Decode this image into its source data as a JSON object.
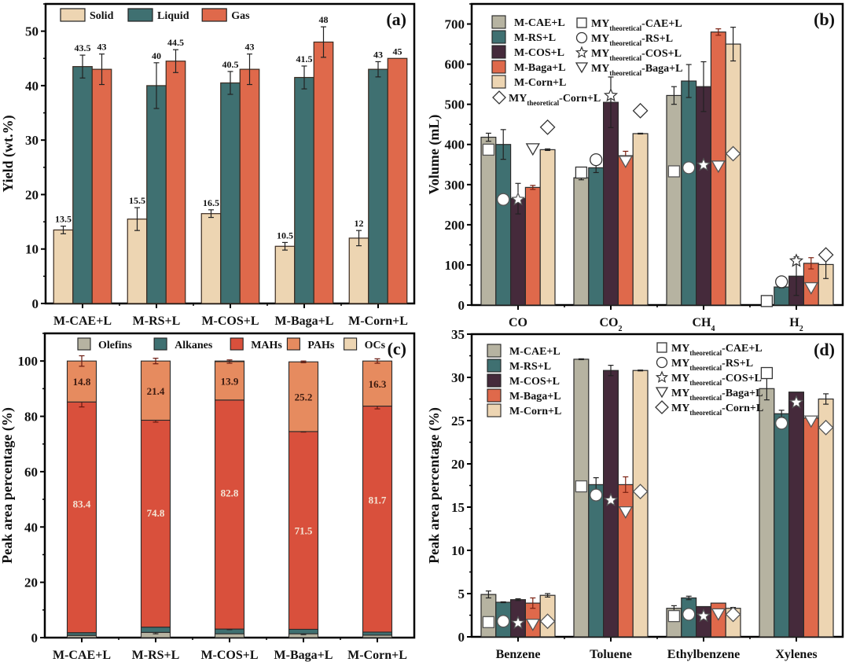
{
  "chart_data": [
    {
      "id": "a",
      "type": "bar",
      "panel_tag": "(a)",
      "title": "",
      "xlabel": "",
      "ylabel": "Yield (wt.%)",
      "ylim": [
        0,
        55
      ],
      "yticks": [
        0,
        10,
        20,
        30,
        40,
        50
      ],
      "categories": [
        "M-CAE+L",
        "M-RS+L",
        "M-COS+L",
        "M-Baga+L",
        "M-Corn+L"
      ],
      "legend_position": "top-left",
      "series": [
        {
          "name": "Solid",
          "color": "#edd5b2",
          "values": [
            13.5,
            15.5,
            16.5,
            10.5,
            12
          ],
          "errors": [
            0.7,
            2.1,
            0.7,
            0.7,
            1.4
          ],
          "labels": [
            "13.5",
            "15.5",
            "16.5",
            "10.5",
            "12"
          ]
        },
        {
          "name": "Liquid",
          "color": "#3f7071",
          "values": [
            43.5,
            40,
            40.5,
            41.5,
            43
          ],
          "errors": [
            2.1,
            4.2,
            2.1,
            2.1,
            1.4
          ],
          "labels": [
            "43.5",
            "40",
            "40.5",
            "41.5",
            "43"
          ]
        },
        {
          "name": "Gas",
          "color": "#df694b",
          "values": [
            43,
            44.5,
            43,
            48,
            45
          ],
          "errors": [
            2.8,
            2.1,
            2.8,
            2.8,
            0
          ],
          "labels": [
            "43",
            "44.5",
            "43",
            "48",
            "45"
          ]
        }
      ]
    },
    {
      "id": "b",
      "type": "bar",
      "panel_tag": "(b)",
      "title": "",
      "xlabel": "",
      "ylabel": "Volume (mL)",
      "ylim": [
        0,
        750
      ],
      "yticks": [
        0,
        100,
        200,
        300,
        400,
        500,
        600,
        700
      ],
      "categories": [
        "CO",
        "CO2",
        "CH4",
        "H2"
      ],
      "category_display": [
        {
          "main": "CO",
          "sub": ""
        },
        {
          "main": "CO",
          "sub": "2"
        },
        {
          "main": "CH",
          "sub": "4"
        },
        {
          "main": "H",
          "sub": "2"
        }
      ],
      "legend_position": "top-left",
      "series": [
        {
          "name": "M-CAE+L",
          "color": "#b6b3a1",
          "values": [
            418,
            317,
            522,
            0
          ],
          "errors": [
            10,
            5,
            22,
            0
          ]
        },
        {
          "name": "M-RS+L",
          "color": "#3f7071",
          "values": [
            400,
            342,
            558,
            45
          ],
          "errors": [
            37,
            12,
            41,
            2
          ]
        },
        {
          "name": "M-COS+L",
          "color": "#452a3b",
          "values": [
            265,
            505,
            544,
            72
          ],
          "errors": [
            38,
            63,
            62,
            48
          ]
        },
        {
          "name": "M-Baga+L",
          "color": "#df694b",
          "values": [
            293,
            372,
            680,
            104
          ],
          "errors": [
            5,
            11,
            8,
            14
          ]
        },
        {
          "name": "M-Corn+L",
          "color": "#edd5b2",
          "values": [
            387,
            427,
            650,
            101
          ],
          "errors": [
            2,
            1,
            42,
            35
          ]
        }
      ],
      "theoretical": [
        {
          "name": "MY",
          "sub": "theoretical",
          "suffix": "-CAE+L",
          "marker": "square",
          "values": [
            387,
            330,
            333,
            10
          ]
        },
        {
          "name": "MY",
          "sub": "theoretical",
          "suffix": "-RS+L",
          "marker": "circle",
          "values": [
            263,
            362,
            342,
            58
          ]
        },
        {
          "name": "MY",
          "sub": "theoretical",
          "suffix": "-COS+L",
          "marker": "star",
          "values": [
            263,
            522,
            349,
            110
          ]
        },
        {
          "name": "MY",
          "sub": "theoretical",
          "suffix": "-Baga+L",
          "marker": "triangle-down",
          "values": [
            388,
            357,
            345,
            42
          ]
        },
        {
          "name": "MY",
          "sub": "theoretical",
          "suffix": "-Corn+L",
          "marker": "diamond",
          "values": [
            443,
            484,
            377,
            125
          ]
        }
      ]
    },
    {
      "id": "c",
      "type": "bar",
      "stacked": true,
      "panel_tag": "(c)",
      "title": "",
      "xlabel": "",
      "ylabel": "Peak area percentage (%)",
      "ylim": [
        0,
        110
      ],
      "yticks": [
        0,
        20,
        40,
        60,
        80,
        100
      ],
      "categories": [
        "M-CAE+L",
        "M-RS+L",
        "M-COS+L",
        "M-Baga+L",
        "M-Corn+L"
      ],
      "legend_position": "top",
      "series": [
        {
          "name": "Olefins",
          "color": "#b6b3a1",
          "values": [
            0.8,
            1.9,
            1.4,
            1.4,
            0.9
          ],
          "errors": [
            0,
            0.5,
            0,
            0.3,
            0
          ]
        },
        {
          "name": "Alkanes",
          "color": "#3f7071",
          "values": [
            1.0,
            1.9,
            1.7,
            1.6,
            1.1
          ],
          "errors": [
            0,
            0,
            0.2,
            0,
            0
          ]
        },
        {
          "name": "MAHs",
          "color": "#d9503c",
          "values": [
            83.4,
            74.8,
            82.8,
            71.5,
            81.7
          ],
          "errors": [
            1.8,
            0.7,
            0,
            0.2,
            1.0
          ],
          "labels": [
            "83.4",
            "74.8",
            "82.8",
            "71.5",
            "81.7"
          ]
        },
        {
          "name": "PAHs",
          "color": "#e68b5f",
          "values": [
            14.8,
            21.4,
            13.9,
            25.2,
            16.3
          ],
          "errors": [
            1.9,
            1.0,
            0.6,
            0.3,
            0.8
          ],
          "labels": [
            "14.8",
            "21.4",
            "13.9",
            "25.2",
            "16.3"
          ]
        },
        {
          "name": "OCs",
          "color": "#edd5b2",
          "values": [
            0,
            0,
            0.2,
            0,
            0
          ],
          "errors": [
            0,
            0,
            0,
            0,
            0
          ]
        }
      ]
    },
    {
      "id": "d",
      "type": "bar",
      "panel_tag": "(d)",
      "title": "",
      "xlabel": "",
      "ylabel": "Peak area percentage (%)",
      "ylim": [
        0,
        35
      ],
      "yticks": [
        0,
        5,
        10,
        15,
        20,
        25,
        30,
        35
      ],
      "categories": [
        "Benzene",
        "Toluene",
        "Ethylbenzene",
        "Xylenes"
      ],
      "legend_position": "top-left",
      "series": [
        {
          "name": "M-CAE+L",
          "color": "#b6b3a1",
          "values": [
            4.9,
            32.1,
            3.3,
            28.7
          ],
          "errors": [
            0.4,
            0.05,
            0.3,
            1.3
          ]
        },
        {
          "name": "M-RS+L",
          "color": "#3f7071",
          "values": [
            4.0,
            17.6,
            4.5,
            25.8
          ],
          "errors": [
            0.05,
            0.8,
            0.2,
            0.4
          ]
        },
        {
          "name": "M-COS+L",
          "color": "#452a3b",
          "values": [
            4.3,
            30.8,
            3.5,
            28.3
          ],
          "errors": [
            0.1,
            0.6,
            0,
            0
          ]
        },
        {
          "name": "M-Baga+L",
          "color": "#df694b",
          "values": [
            3.9,
            17.6,
            3.9,
            25.3
          ],
          "errors": [
            0.6,
            0.9,
            0,
            0.2
          ]
        },
        {
          "name": "M-Corn+L",
          "color": "#edd5b2",
          "values": [
            4.8,
            30.8,
            3.3,
            27.5
          ],
          "errors": [
            0.2,
            0.05,
            0.1,
            0.6
          ]
        }
      ],
      "theoretical": [
        {
          "name": "MY",
          "sub": "theoretical",
          "suffix": "-CAE+L",
          "marker": "square",
          "values": [
            1.7,
            17.4,
            2.4,
            30.5
          ]
        },
        {
          "name": "MY",
          "sub": "theoretical",
          "suffix": "-RS+L",
          "marker": "circle",
          "values": [
            1.8,
            16.4,
            2.6,
            24.7
          ]
        },
        {
          "name": "MY",
          "sub": "theoretical",
          "suffix": "-COS+L",
          "marker": "star",
          "values": [
            1.6,
            15.8,
            2.4,
            27.1
          ]
        },
        {
          "name": "MY",
          "sub": "theoretical",
          "suffix": "-Baga+L",
          "marker": "triangle-down",
          "values": [
            1.4,
            14.4,
            2.6,
            24.9
          ]
        },
        {
          "name": "MY",
          "sub": "theoretical",
          "suffix": "-Corn+L",
          "marker": "diamond",
          "values": [
            1.8,
            16.8,
            2.6,
            24.2
          ]
        }
      ]
    }
  ]
}
